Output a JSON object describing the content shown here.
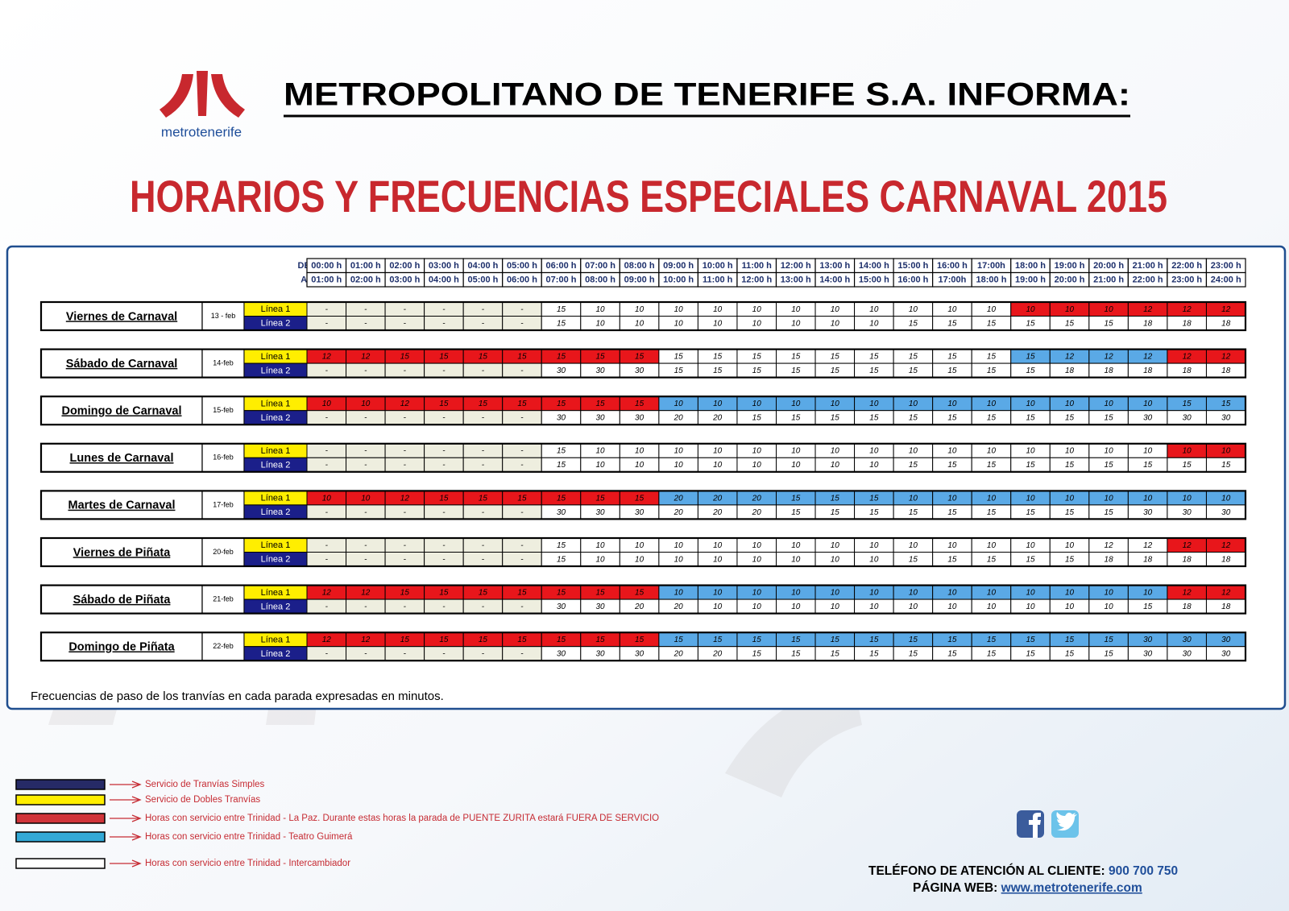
{
  "header": {
    "title": "METROPOLITANO DE TENERIFE S.A. INFORMA:",
    "subtitle": "HORARIOS Y FRECUENCIAS ESPECIALES CARNAVAL 2015",
    "logo_text": "metrotenerife"
  },
  "schedule": {
    "from_label": "DE:",
    "to_label": "A:",
    "from_hours": [
      "00:00 h",
      "01:00 h",
      "02:00 h",
      "03:00 h",
      "04:00 h",
      "05:00 h",
      "06:00 h",
      "07:00 h",
      "08:00 h",
      "09:00 h",
      "10:00 h",
      "11:00 h",
      "12:00 h",
      "13:00 h",
      "14:00 h",
      "15:00 h",
      "16:00 h",
      "17:00h",
      "18:00 h",
      "19:00 h",
      "20:00 h",
      "21:00 h",
      "22:00 h",
      "23:00 h"
    ],
    "to_hours": [
      "01:00 h",
      "02:00 h",
      "03:00 h",
      "04:00 h",
      "05:00 h",
      "06:00 h",
      "07:00 h",
      "08:00 h",
      "09:00 h",
      "10:00 h",
      "11:00 h",
      "12:00 h",
      "13:00 h",
      "14:00 h",
      "15:00 h",
      "16:00 h",
      "17:00h",
      "18:00 h",
      "19:00 h",
      "20:00 h",
      "21:00 h",
      "22:00 h",
      "23:00 h",
      "24:00 h"
    ],
    "line_labels": [
      "Línea 1",
      "Línea 2"
    ],
    "line_colors": [
      [
        "#ffee00",
        "#000000"
      ],
      [
        "#1b1f8a",
        "#ffffff"
      ]
    ],
    "palette": {
      "g": "#eeeedf",
      "w": "#ffffff",
      "r": "#e8161b",
      "b": "#5aa9e6"
    },
    "days": [
      {
        "name": "Viernes de Carnaval",
        "date": "13 - feb",
        "lines": [
          {
            "values": [
              "-",
              "-",
              "-",
              "-",
              "-",
              "-",
              15,
              10,
              10,
              10,
              10,
              10,
              10,
              10,
              10,
              10,
              10,
              10,
              10,
              10,
              10,
              12,
              12,
              12
            ],
            "fills": "ggggggwwwwwwwwwwwwrrrrrr"
          },
          {
            "values": [
              "-",
              "-",
              "-",
              "-",
              "-",
              "-",
              15,
              10,
              10,
              10,
              10,
              10,
              10,
              10,
              10,
              15,
              15,
              15,
              15,
              15,
              15,
              18,
              18,
              18
            ],
            "fills": "ggggggwwwwwwwwwwwwwwwwww"
          }
        ]
      },
      {
        "name": "Sábado de Carnaval",
        "date": "14-feb",
        "lines": [
          {
            "values": [
              12,
              12,
              15,
              15,
              15,
              15,
              15,
              15,
              15,
              15,
              15,
              15,
              15,
              15,
              15,
              15,
              15,
              15,
              15,
              12,
              12,
              12,
              12,
              12
            ],
            "fills": "rrrrrrrrrwwwwwwwwwbbbbrr"
          },
          {
            "values": [
              "-",
              "-",
              "-",
              "-",
              "-",
              "-",
              30,
              30,
              30,
              15,
              15,
              15,
              15,
              15,
              15,
              15,
              15,
              15,
              15,
              18,
              18,
              18,
              18,
              18
            ],
            "fills": "ggggggwwwwwwwwwwwwwwwwww"
          }
        ]
      },
      {
        "name": "Domingo de Carnaval",
        "date": "15-feb",
        "lines": [
          {
            "values": [
              10,
              10,
              12,
              15,
              15,
              15,
              15,
              15,
              15,
              10,
              10,
              10,
              10,
              10,
              10,
              10,
              10,
              10,
              10,
              10,
              10,
              10,
              15,
              15
            ],
            "fills": "rrrrrrrrrbbbbbbbbbbbbbbb"
          },
          {
            "values": [
              "-",
              "-",
              "-",
              "-",
              "-",
              "-",
              30,
              30,
              30,
              20,
              20,
              15,
              15,
              15,
              15,
              15,
              15,
              15,
              15,
              15,
              15,
              30,
              30,
              30
            ],
            "fills": "ggggggwwwwwwwwwwwwwwwwww"
          }
        ]
      },
      {
        "name": "Lunes de Carnaval",
        "date": "16-feb",
        "lines": [
          {
            "values": [
              "-",
              "-",
              "-",
              "-",
              "-",
              "-",
              15,
              10,
              10,
              10,
              10,
              10,
              10,
              10,
              10,
              10,
              10,
              10,
              10,
              10,
              10,
              10,
              10,
              10
            ],
            "fills": "ggggggwwwwwwwwwwwwwwwwrr"
          },
          {
            "values": [
              "-",
              "-",
              "-",
              "-",
              "-",
              "-",
              15,
              10,
              10,
              10,
              10,
              10,
              10,
              10,
              10,
              15,
              15,
              15,
              15,
              15,
              15,
              15,
              15,
              15
            ],
            "fills": "ggggggwwwwwwwwwwwwwwwwww"
          }
        ]
      },
      {
        "name": "Martes de Carnaval",
        "date": "17-feb",
        "lines": [
          {
            "values": [
              10,
              10,
              12,
              15,
              15,
              15,
              15,
              15,
              15,
              20,
              20,
              20,
              15,
              15,
              15,
              10,
              10,
              10,
              10,
              10,
              10,
              10,
              10,
              10
            ],
            "fills": "rrrrrrrrrbbbbbbbbbbbbbbb"
          },
          {
            "values": [
              "-",
              "-",
              "-",
              "-",
              "-",
              "-",
              30,
              30,
              30,
              20,
              20,
              20,
              15,
              15,
              15,
              15,
              15,
              15,
              15,
              15,
              15,
              30,
              30,
              30
            ],
            "fills": "ggggggwwwwwwwwwwwwwwwwww"
          }
        ]
      },
      {
        "name": "Viernes de Piñata",
        "date": "20-feb",
        "lines": [
          {
            "values": [
              "-",
              "-",
              "-",
              "-",
              "-",
              "-",
              15,
              10,
              10,
              10,
              10,
              10,
              10,
              10,
              10,
              10,
              10,
              10,
              10,
              10,
              12,
              12,
              12,
              12
            ],
            "fills": "ggggggwwwwwwwwwwwwwwwwrr"
          },
          {
            "values": [
              "-",
              "-",
              "-",
              "-",
              "-",
              "-",
              15,
              10,
              10,
              10,
              10,
              10,
              10,
              10,
              10,
              15,
              15,
              15,
              15,
              15,
              18,
              18,
              18,
              18
            ],
            "fills": "ggggggwwwwwwwwwwwwwwwwww"
          }
        ]
      },
      {
        "name": "Sábado de Piñata",
        "date": "21-feb",
        "lines": [
          {
            "values": [
              12,
              12,
              15,
              15,
              15,
              15,
              15,
              15,
              15,
              10,
              10,
              10,
              10,
              10,
              10,
              10,
              10,
              10,
              10,
              10,
              10,
              10,
              12,
              12
            ],
            "fills": "rrrrrrrrrbbbbbbbbbbbbbrr"
          },
          {
            "values": [
              "-",
              "-",
              "-",
              "-",
              "-",
              "-",
              30,
              30,
              20,
              20,
              10,
              10,
              10,
              10,
              10,
              10,
              10,
              10,
              10,
              10,
              10,
              15,
              18,
              18
            ],
            "fills": "ggggggwwwwwwwwwwwwwwwwww"
          }
        ]
      },
      {
        "name": "Domingo de Piñata",
        "date": "22-feb",
        "lines": [
          {
            "values": [
              12,
              12,
              15,
              15,
              15,
              15,
              15,
              15,
              15,
              15,
              15,
              15,
              15,
              15,
              15,
              15,
              15,
              15,
              15,
              15,
              15,
              30,
              30,
              30
            ],
            "fills": "rrrrrrrrrbbbbbbbbbbbbbbb"
          },
          {
            "values": [
              "-",
              "-",
              "-",
              "-",
              "-",
              "-",
              30,
              30,
              30,
              20,
              20,
              15,
              15,
              15,
              15,
              15,
              15,
              15,
              15,
              15,
              15,
              30,
              30,
              30
            ],
            "fills": "ggggggwwwwwwwwwwwwwwwwww"
          }
        ]
      }
    ]
  },
  "note": "Frecuencias de paso de los tranvías en cada parada expresadas en minutos.",
  "legend": [
    {
      "color": "#262a66",
      "label": "Servicio de Tranvías Simples"
    },
    {
      "color": "#ffee00",
      "label": "Servicio de Dobles Tranvías"
    },
    {
      "color": "#d0343a",
      "label": "Horas con servicio entre Trinidad - La Paz. Durante estas horas la parada de PUENTE ZURITA estará FUERA DE SERVICIO"
    },
    {
      "color": "#33a9d6",
      "label": "Horas con servicio entre Trinidad - Teatro Guimerá"
    },
    {
      "color": "#ffffff",
      "label": "Horas con servicio entre Trinidad - Intercambiador"
    }
  ],
  "contact": {
    "phone_label": "TELÉFONO DE ATENCIÓN AL CLIENTE:",
    "phone": "900 700 750",
    "web_label": "PÁGINA WEB:",
    "web": "www.metrotenerife.com"
  }
}
